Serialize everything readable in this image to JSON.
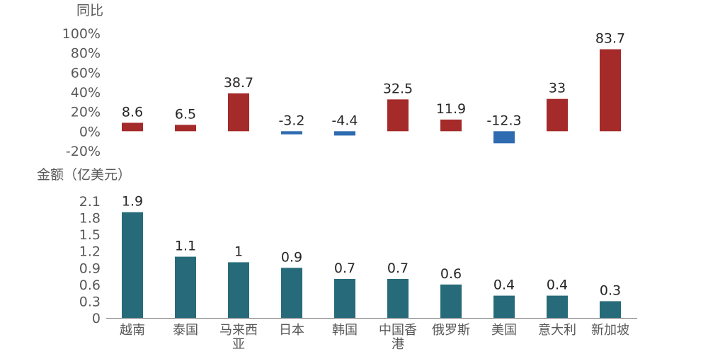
{
  "chart_data": [
    {
      "type": "bar",
      "ylabel": "同比",
      "categories": [
        "越南",
        "泰国",
        "马来西亚",
        "日本",
        "韩国",
        "中国香港",
        "俄罗斯",
        "美国",
        "意大利",
        "新加坡"
      ],
      "values": [
        8.6,
        6.5,
        38.7,
        -3.2,
        -4.4,
        32.5,
        11.9,
        -12.3,
        33,
        83.7
      ],
      "value_labels": [
        "8.6",
        "6.5",
        "38.7",
        "-3.2",
        "-4.4",
        "32.5",
        "11.9",
        "-12.3",
        "33",
        "83.7"
      ],
      "ylim": [
        -20,
        100
      ],
      "yticks": [
        "100%",
        "80%",
        "60%",
        "40%",
        "20%",
        "0%",
        "-20%"
      ],
      "ytick_values": [
        100,
        80,
        60,
        40,
        20,
        0,
        -20
      ],
      "positive_color": "#a52a2a",
      "negative_color": "#2e6bb0"
    },
    {
      "type": "bar",
      "ylabel": "金额（亿美元）",
      "categories": [
        "越南",
        "泰国",
        "马来西亚",
        "日本",
        "韩国",
        "中国香港",
        "俄罗斯",
        "美国",
        "意大利",
        "新加坡"
      ],
      "category_lines": [
        [
          "越南"
        ],
        [
          "泰国"
        ],
        [
          "马来西",
          "亚"
        ],
        [
          "日本"
        ],
        [
          "韩国"
        ],
        [
          "中国香",
          "港"
        ],
        [
          "俄罗斯"
        ],
        [
          "美国"
        ],
        [
          "意大利"
        ],
        [
          "新加坡"
        ]
      ],
      "values": [
        1.9,
        1.1,
        1,
        0.9,
        0.7,
        0.7,
        0.6,
        0.4,
        0.4,
        0.3
      ],
      "value_labels": [
        "1.9",
        "1.1",
        "1",
        "0.9",
        "0.7",
        "0.7",
        "0.6",
        "0.4",
        "0.4",
        "0.3"
      ],
      "ylim": [
        0,
        2.1
      ],
      "yticks": [
        "2.1",
        "1.8",
        "1.5",
        "1.2",
        "0.9",
        "0.6",
        "0.3",
        "0"
      ],
      "ytick_values": [
        2.1,
        1.8,
        1.5,
        1.2,
        0.9,
        0.6,
        0.3,
        0
      ],
      "bar_color": "#276b7a"
    }
  ]
}
